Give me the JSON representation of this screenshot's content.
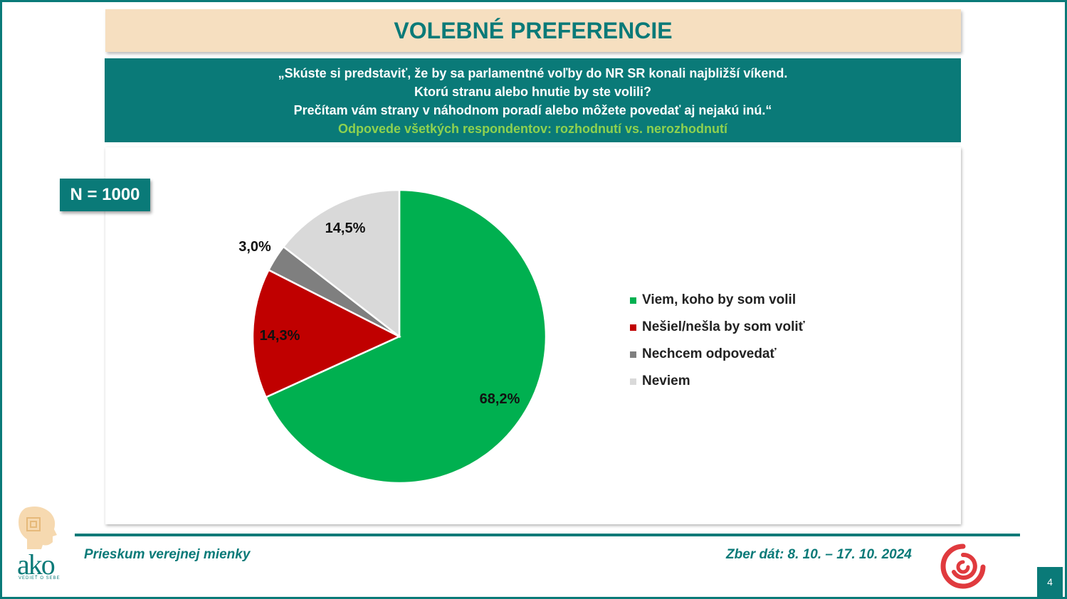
{
  "header": {
    "title": "VOLEBNÉ PREFERENCIE"
  },
  "question": {
    "line1": "„Skúste si predstaviť, že by sa parlamentné voľby do NR SR konali najbližší víkend.",
    "line2": "Ktorú stranu alebo hnutie by ste volili?",
    "line3": "Prečítam vám strany v náhodnom poradí alebo môžete povedať aj nejakú inú.“",
    "subtitle": "Odpovede všetkých respondentov: rozhodnutí vs. nerozhodnutí"
  },
  "sample": {
    "label": "N = 1000"
  },
  "chart_data": {
    "type": "pie",
    "categories": [
      "Viem, koho by som volil",
      "Nešiel/nešla by som voliť",
      "Nechcem odpovedať",
      "Neviem"
    ],
    "values": [
      68.2,
      14.3,
      3.0,
      14.5
    ],
    "labels": [
      "68,2%",
      "14,3%",
      "3,0%",
      "14,5%"
    ],
    "colors": [
      "#00b050",
      "#c00000",
      "#7f7f7f",
      "#d9d9d9"
    ],
    "legend_position": "right"
  },
  "footer": {
    "left": "Prieskum verejnej mienky",
    "right": "Zber dát: 8. 10. – 17. 10. 2024",
    "page_number": "4"
  },
  "logos": {
    "ako_brand": "ako",
    "ako_tagline": "VEDIEŤ O SEBE"
  },
  "colors": {
    "accent": "#0a7a78",
    "header_bg": "#f6dfc0",
    "subtitle_green": "#8ed14f"
  }
}
